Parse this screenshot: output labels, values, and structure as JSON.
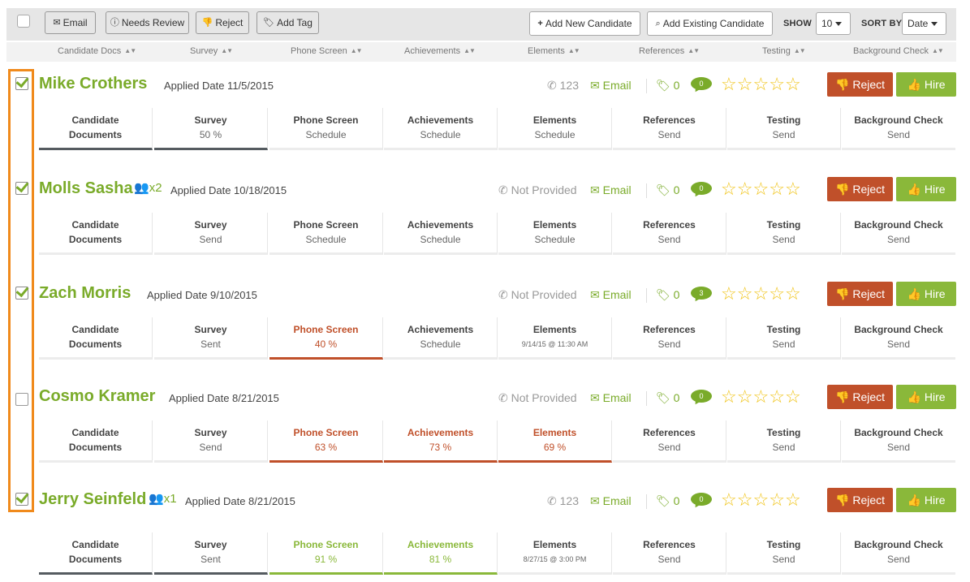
{
  "toolbar": {
    "email": "Email",
    "needs_review": "Needs Review",
    "reject": "Reject",
    "add_tag": "Add Tag",
    "add_new_candidate": "Add New Candidate",
    "add_existing_candidate": "Add Existing Candidate",
    "show_label": "SHOW",
    "show_value": "10",
    "sort_label": "SORT BY",
    "sort_value": "Date"
  },
  "columns": [
    "Candidate Docs",
    "Survey",
    "Phone Screen",
    "Achievements",
    "Elements",
    "References",
    "Testing",
    "Background Check"
  ],
  "actions": {
    "reject": "Reject",
    "hire": "Hire",
    "email": "Email"
  },
  "rating_max": 5,
  "colors": {
    "accent_green": "#7aab2a",
    "reject_red": "#c0502a",
    "hire_green": "#8ab83a",
    "star": "#f0c419",
    "highlight_orange": "#f08a1c"
  },
  "candidates": [
    {
      "checked": true,
      "name": "Mike Crothers",
      "referral": "",
      "applied": "Applied Date 11/5/2015",
      "phone": "123",
      "tags": "0",
      "comments": "0",
      "rating": 0,
      "stages": [
        {
          "title": "Candidate",
          "title2": "Documents",
          "value": "",
          "state": "dark"
        },
        {
          "title": "Survey",
          "value": "50 %",
          "state": "dark"
        },
        {
          "title": "Phone Screen",
          "value": "Schedule",
          "state": ""
        },
        {
          "title": "Achievements",
          "value": "Schedule",
          "state": ""
        },
        {
          "title": "Elements",
          "value": "Schedule",
          "state": ""
        },
        {
          "title": "References",
          "value": "Send",
          "state": ""
        },
        {
          "title": "Testing",
          "value": "Send",
          "state": ""
        },
        {
          "title": "Background Check",
          "value": "Send",
          "state": ""
        }
      ]
    },
    {
      "checked": true,
      "name": "Molls Sasha",
      "referral": "x2",
      "applied": "Applied Date 10/18/2015",
      "phone": "Not Provided",
      "tags": "0",
      "comments": "0",
      "rating": 0,
      "stages": [
        {
          "title": "Candidate",
          "title2": "Documents",
          "value": "",
          "state": ""
        },
        {
          "title": "Survey",
          "value": "Send",
          "state": ""
        },
        {
          "title": "Phone Screen",
          "value": "Schedule",
          "state": ""
        },
        {
          "title": "Achievements",
          "value": "Schedule",
          "state": ""
        },
        {
          "title": "Elements",
          "value": "Schedule",
          "state": ""
        },
        {
          "title": "References",
          "value": "Send",
          "state": ""
        },
        {
          "title": "Testing",
          "value": "Send",
          "state": ""
        },
        {
          "title": "Background Check",
          "value": "Send",
          "state": ""
        }
      ]
    },
    {
      "checked": true,
      "name": "Zach Morris",
      "referral": "",
      "applied": "Applied Date 9/10/2015",
      "phone": "Not Provided",
      "tags": "0",
      "comments": "3",
      "rating": 0,
      "stages": [
        {
          "title": "Candidate",
          "title2": "Documents",
          "value": "",
          "state": ""
        },
        {
          "title": "Survey",
          "value": "Sent",
          "state": ""
        },
        {
          "title": "Phone Screen",
          "value": "40 %",
          "state": "red"
        },
        {
          "title": "Achievements",
          "value": "Schedule",
          "state": ""
        },
        {
          "title": "Elements",
          "value": "9/14/15 @ 11:30 AM",
          "state": "",
          "small": true
        },
        {
          "title": "References",
          "value": "Send",
          "state": ""
        },
        {
          "title": "Testing",
          "value": "Send",
          "state": ""
        },
        {
          "title": "Background Check",
          "value": "Send",
          "state": ""
        }
      ]
    },
    {
      "checked": false,
      "name": "Cosmo Kramer",
      "referral": "",
      "applied": "Applied Date 8/21/2015",
      "phone": "Not Provided",
      "tags": "0",
      "comments": "0",
      "rating": 0,
      "stages": [
        {
          "title": "Candidate",
          "title2": "Documents",
          "value": "",
          "state": ""
        },
        {
          "title": "Survey",
          "value": "Send",
          "state": ""
        },
        {
          "title": "Phone Screen",
          "value": "63 %",
          "state": "red"
        },
        {
          "title": "Achievements",
          "value": "73 %",
          "state": "red"
        },
        {
          "title": "Elements",
          "value": "69 %",
          "state": "red"
        },
        {
          "title": "References",
          "value": "Send",
          "state": ""
        },
        {
          "title": "Testing",
          "value": "Send",
          "state": ""
        },
        {
          "title": "Background Check",
          "value": "Send",
          "state": ""
        }
      ]
    },
    {
      "checked": true,
      "name": "Jerry Seinfeld",
      "referral": "x1",
      "applied": "Applied Date 8/21/2015",
      "phone": "123",
      "tags": "0",
      "comments": "0",
      "rating": 0,
      "stages": [
        {
          "title": "Candidate",
          "title2": "Documents",
          "value": "",
          "state": "dark"
        },
        {
          "title": "Survey",
          "value": "Sent",
          "state": "dark"
        },
        {
          "title": "Phone Screen",
          "value": "91 %",
          "state": "green"
        },
        {
          "title": "Achievements",
          "value": "81 %",
          "state": "green"
        },
        {
          "title": "Elements",
          "value": "8/27/15 @ 3:00 PM",
          "state": "",
          "small": true
        },
        {
          "title": "References",
          "value": "Send",
          "state": ""
        },
        {
          "title": "Testing",
          "value": "Send",
          "state": ""
        },
        {
          "title": "Background Check",
          "value": "Send",
          "state": ""
        }
      ]
    }
  ]
}
